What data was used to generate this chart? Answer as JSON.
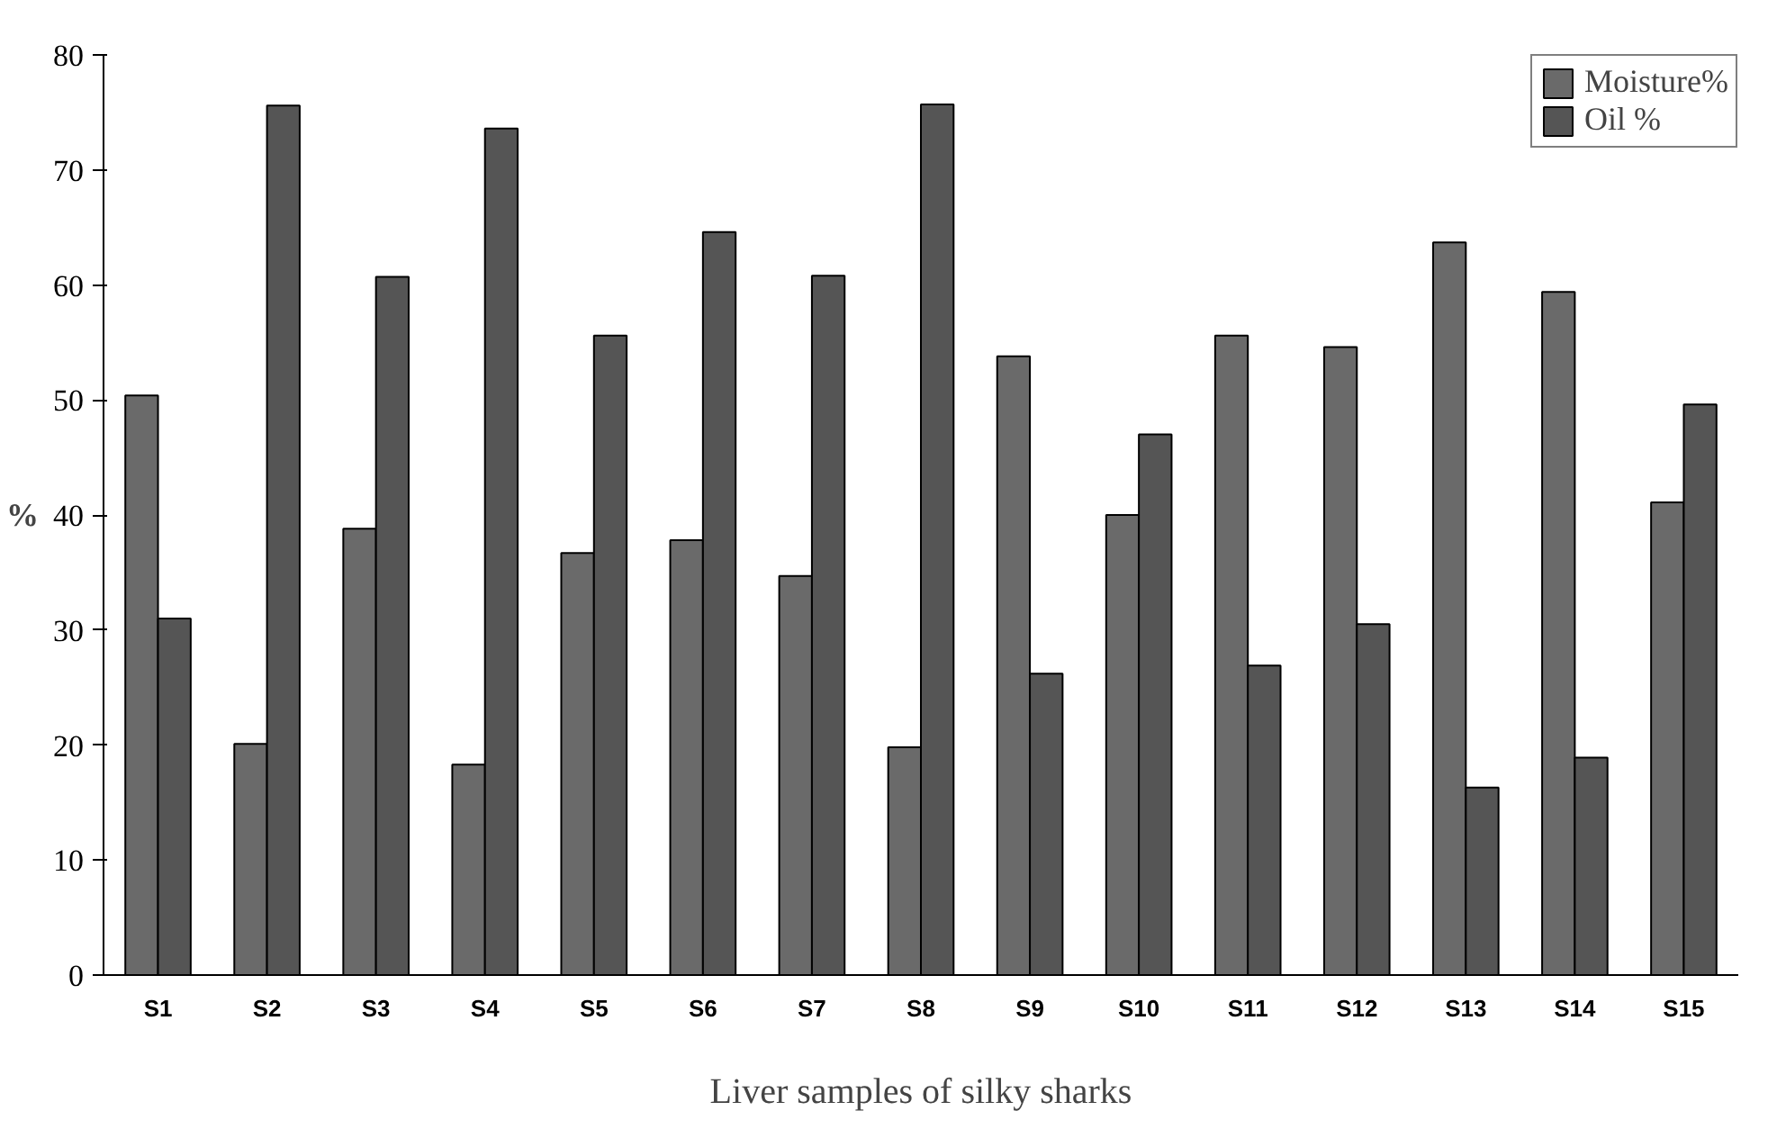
{
  "chart_data": {
    "type": "bar",
    "xlabel": "Liver samples of silky sharks",
    "ylabel": "%",
    "categories": [
      "S1",
      "S2",
      "S3",
      "S4",
      "S5",
      "S6",
      "S7",
      "S8",
      "S9",
      "S10",
      "S11",
      "S12",
      "S13",
      "S14",
      "S15"
    ],
    "series": [
      {
        "name": "Moisture%",
        "color": "#6a6a6a",
        "values": [
          50.4,
          20.1,
          38.8,
          18.3,
          36.7,
          37.8,
          34.7,
          19.8,
          53.8,
          40.0,
          55.6,
          54.6,
          63.7,
          59.4,
          41.1
        ]
      },
      {
        "name": "Oil %",
        "color": "#555555",
        "values": [
          31.0,
          75.6,
          60.7,
          73.6,
          55.6,
          64.6,
          60.8,
          75.7,
          26.2,
          47.0,
          26.9,
          30.5,
          16.3,
          18.9,
          49.6
        ]
      }
    ],
    "ylim": [
      0,
      80
    ],
    "yticks": [
      0,
      10,
      20,
      30,
      40,
      50,
      60,
      70,
      80
    ],
    "grid": false,
    "legend": "top right"
  }
}
